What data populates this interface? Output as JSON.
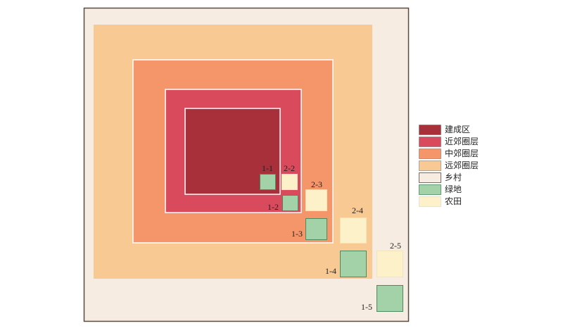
{
  "legend": {
    "items": [
      {
        "label": "建成区"
      },
      {
        "label": "近郊圈层"
      },
      {
        "label": "中郊圈层"
      },
      {
        "label": "远郊圈层"
      },
      {
        "label": "乡村"
      },
      {
        "label": "绿地"
      },
      {
        "label": "农田"
      }
    ]
  },
  "squares": [
    {
      "label": "1-1"
    },
    {
      "label": "2-2"
    },
    {
      "label": "1-2"
    },
    {
      "label": "2-3"
    },
    {
      "label": "1-3"
    },
    {
      "label": "2-4"
    },
    {
      "label": "1-4"
    },
    {
      "label": "2-5"
    },
    {
      "label": "1-5"
    }
  ]
}
